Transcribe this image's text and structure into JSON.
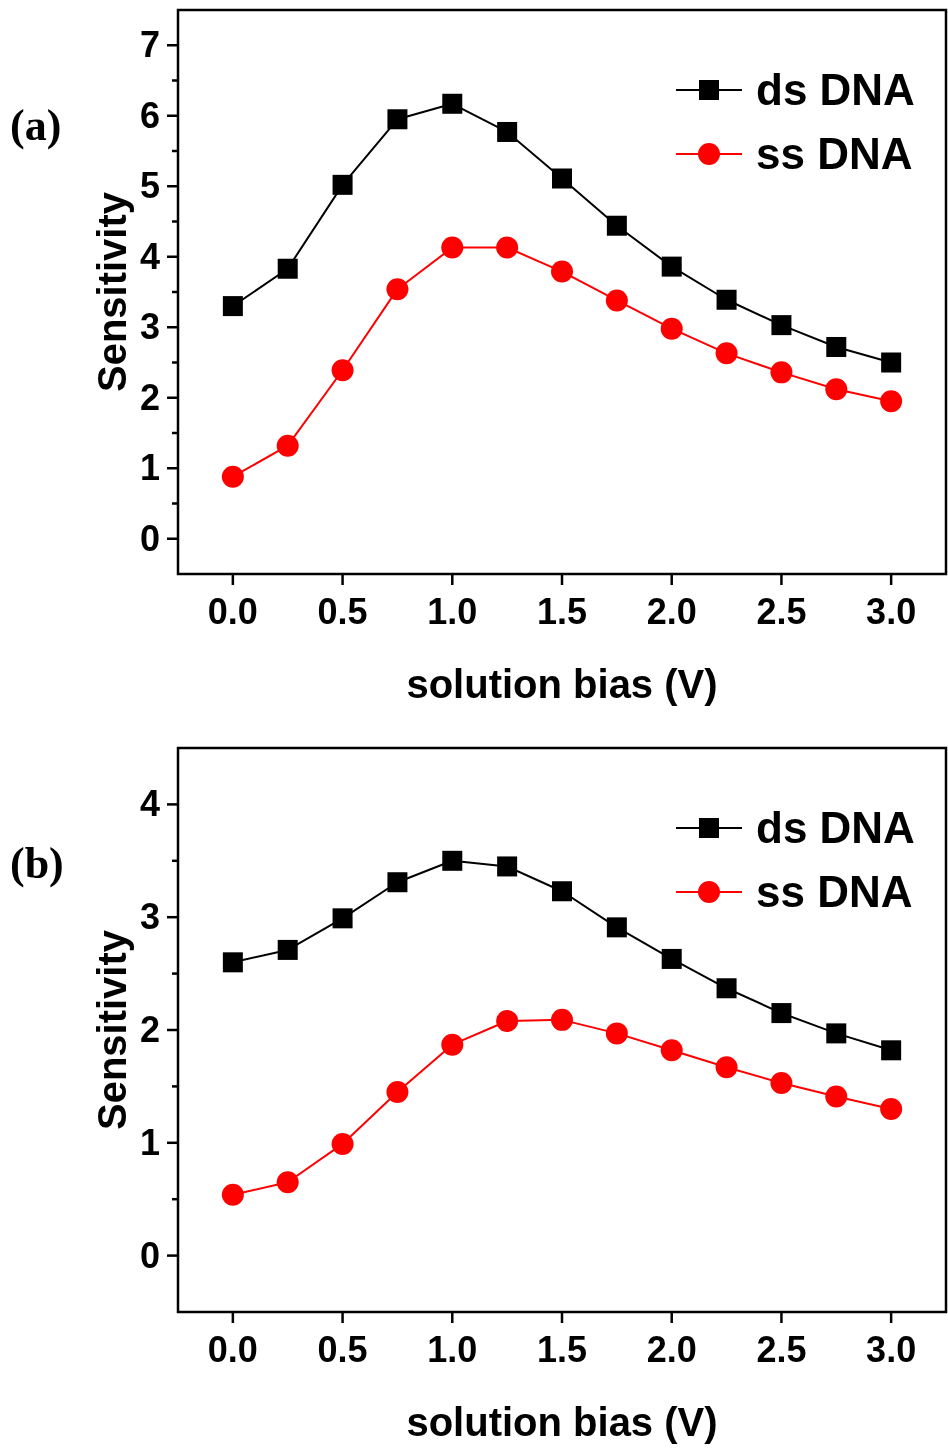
{
  "chart_data": [
    {
      "type": "line",
      "annotations": [
        "(a)"
      ],
      "xlabel": "solution bias (V)",
      "ylabel": "Sensitivity",
      "x": [
        0,
        0.25,
        0.5,
        0.75,
        1,
        1.25,
        1.5,
        1.75,
        2,
        2.25,
        2.5,
        2.75,
        3
      ],
      "xlim": [
        -0.25,
        3.25
      ],
      "xticks": [
        {
          "value": 0,
          "label": "0.0"
        },
        0.5,
        {
          "value": 1,
          "label": "1.0"
        },
        1.5,
        {
          "value": 2,
          "label": "2.0"
        },
        2.5,
        {
          "value": 3,
          "label": "3.0"
        }
      ],
      "ylim": [
        -0.5,
        7.5
      ],
      "yticks": [
        0,
        {
          "value": 0.5,
          "label": null
        },
        1,
        {
          "value": 1.5,
          "label": null
        },
        2,
        {
          "value": 2.5,
          "label": null
        },
        3,
        {
          "value": 3.5,
          "label": null
        },
        4,
        {
          "value": 4.5,
          "label": null
        },
        5,
        {
          "value": 5.5,
          "label": null
        },
        6,
        {
          "value": 6.5,
          "label": null
        },
        7
      ],
      "legend": "top right",
      "grid": false,
      "series": [
        {
          "name": "ds DNA",
          "color": "#000000",
          "marker": "square",
          "values": [
            3.3,
            3.83,
            5.02,
            5.95,
            6.17,
            5.77,
            5.11,
            4.44,
            3.86,
            3.39,
            3.03,
            2.72,
            2.5
          ]
        },
        {
          "name": "ss DNA",
          "color": "#ff0000",
          "marker": "circle",
          "values": [
            0.88,
            1.32,
            2.39,
            3.54,
            4.13,
            4.13,
            3.79,
            3.38,
            2.98,
            2.63,
            2.36,
            2.12,
            1.95
          ]
        }
      ]
    },
    {
      "type": "line",
      "annotations": [
        "(b)"
      ],
      "xlabel": "solution bias (V)",
      "ylabel": "Sensitivity",
      "x": [
        0,
        0.25,
        0.5,
        0.75,
        1,
        1.25,
        1.5,
        1.75,
        2,
        2.25,
        2.5,
        2.75,
        3
      ],
      "xlim": [
        -0.25,
        3.25
      ],
      "xticks": [
        {
          "value": 0,
          "label": "0.0"
        },
        0.5,
        {
          "value": 1,
          "label": "1.0"
        },
        1.5,
        {
          "value": 2,
          "label": "2.0"
        },
        2.5,
        {
          "value": 3,
          "label": "3.0"
        }
      ],
      "ylim": [
        -0.5,
        4.5
      ],
      "yticks": [
        0,
        {
          "value": 0.5,
          "label": null
        },
        1,
        {
          "value": 1.5,
          "label": null
        },
        2,
        {
          "value": 2.5,
          "label": null
        },
        3,
        {
          "value": 3.5,
          "label": null
        },
        4
      ],
      "legend": "top right",
      "grid": false,
      "series": [
        {
          "name": "ds DNA",
          "color": "#000000",
          "marker": "square",
          "values": [
            2.6,
            2.71,
            2.99,
            3.31,
            3.5,
            3.45,
            3.23,
            2.91,
            2.63,
            2.37,
            2.15,
            1.97,
            1.82
          ]
        },
        {
          "name": "ss DNA",
          "color": "#ff0000",
          "marker": "circle",
          "values": [
            0.54,
            0.65,
            0.99,
            1.45,
            1.87,
            2.08,
            2.09,
            1.97,
            1.82,
            1.67,
            1.53,
            1.41,
            1.3
          ]
        }
      ]
    }
  ]
}
